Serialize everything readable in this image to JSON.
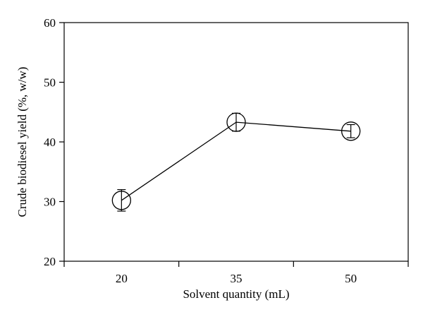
{
  "chart_data": {
    "type": "line",
    "title": "",
    "xlabel": "Solvent quantity (mL)",
    "ylabel": "Crude biodiesel yield (%, w/w)",
    "categories": [
      "20",
      "35",
      "50"
    ],
    "series": [
      {
        "values": [
          30.2,
          43.3,
          41.8
        ],
        "error": [
          1.8,
          1.5,
          1.1
        ]
      }
    ],
    "ylim": [
      20,
      60
    ],
    "yticks": [
      20,
      30,
      40,
      50,
      60
    ],
    "grid": false,
    "legend": "none",
    "marker": "open-circle",
    "colors": {
      "line": "#000000",
      "marker_fill": "#ffffff"
    }
  }
}
